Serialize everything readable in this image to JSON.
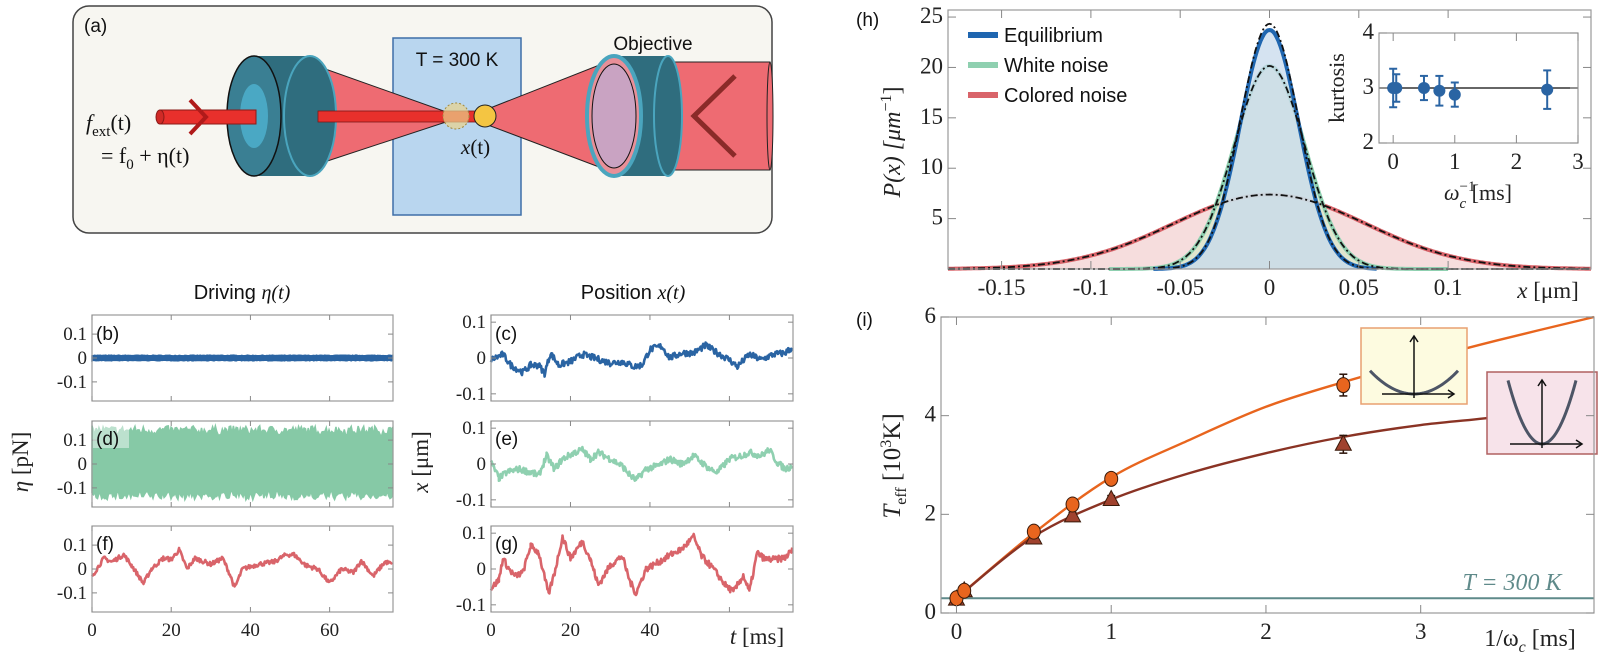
{
  "panel_labels": {
    "a": "(a)",
    "b": "(b)",
    "c": "(c)",
    "d": "(d)",
    "e": "(e)",
    "f": "(f)",
    "g": "(g)",
    "h": "(h)",
    "i": "(i)"
  },
  "schematic": {
    "bath_label": "T = 300 K",
    "objective_label": "Objective",
    "position_label": {
      "var": "x",
      "arg": "(t)"
    },
    "force_label": {
      "f": "f",
      "sub": "ext",
      "arg": "(t)",
      "eq": "= f",
      "zero": "0",
      "rest": " + η(t)"
    },
    "colors": {
      "beam": "#ee6b72",
      "lens": "#2f6d7e",
      "bath": "#b9d6ef",
      "bead": "#f4c542"
    }
  },
  "column_titles": {
    "driving": {
      "text": "Driving ",
      "var": "η(t)"
    },
    "position": {
      "text": "Position ",
      "var": "x(t)"
    }
  },
  "axis_labels": {
    "eta": {
      "var": "η",
      "unit": "  [pN]"
    },
    "x": {
      "var": "x",
      "unit": "  [μm]"
    },
    "t": {
      "var": "t",
      "unit": " [ms]"
    },
    "h_x": {
      "var": "x",
      "unit": " [μm]"
    },
    "h_y": {
      "main": "P(x)  [μm",
      "sup": "−1",
      "end": "]"
    },
    "inset_x": {
      "main": "ω",
      "sub": "c",
      "sup": "−1",
      "end": " [ms]"
    },
    "inset_y": "kurtosis",
    "i_x": {
      "main": "1/ω",
      "sub": "c",
      "end": " [ms]"
    },
    "i_y": {
      "main": "T",
      "sub": "eff",
      "mid": "  [10",
      "sup": "3",
      "end": "K]"
    },
    "i_ref": "T = 300 K"
  },
  "chart_data": [
    {
      "id": "b",
      "type": "line",
      "xlim": [
        0,
        76
      ],
      "ylim": [
        -0.18,
        0.18
      ],
      "xticks": [
        0,
        20,
        40,
        60
      ],
      "yticks": [
        -0.1,
        0,
        0.1
      ],
      "ytick_labels": [
        "-0.1",
        "0",
        "0.1"
      ],
      "xtick_labels": [],
      "color": "#2a64a3",
      "band": {
        "lower": -0.012,
        "upper": 0.012
      }
    },
    {
      "id": "d",
      "type": "line",
      "xlim": [
        0,
        76
      ],
      "ylim": [
        -0.18,
        0.18
      ],
      "xticks": [
        0,
        20,
        40,
        60
      ],
      "yticks": [
        -0.1,
        0,
        0.1
      ],
      "ytick_labels": [
        "-0.1",
        "0",
        "0.1"
      ],
      "xtick_labels": [],
      "color": "#86c9a6",
      "band": {
        "lower": -0.15,
        "upper": 0.16
      }
    },
    {
      "id": "f",
      "type": "line",
      "xlim": [
        0,
        76
      ],
      "ylim": [
        -0.18,
        0.18
      ],
      "xticks": [
        0,
        20,
        40,
        60
      ],
      "yticks": [
        -0.1,
        0,
        0.1
      ],
      "ytick_labels": [
        "-0.1",
        "0",
        "0.1"
      ],
      "xtick_labels": [
        "0",
        "20",
        "40",
        "60"
      ],
      "color": "#d9646a",
      "points": [
        [
          0,
          -0.03
        ],
        [
          3,
          0.045
        ],
        [
          5,
          0.03
        ],
        [
          8,
          0.06
        ],
        [
          10,
          0.015
        ],
        [
          13,
          -0.06
        ],
        [
          15,
          0
        ],
        [
          18,
          0.045
        ],
        [
          20,
          0.04
        ],
        [
          22,
          0.08
        ],
        [
          24,
          0
        ],
        [
          26,
          0.045
        ],
        [
          30,
          0.02
        ],
        [
          33,
          0.045
        ],
        [
          35,
          -0.03
        ],
        [
          36,
          -0.08
        ],
        [
          38,
          0
        ],
        [
          42,
          0.02
        ],
        [
          46,
          0.03
        ],
        [
          49,
          0.06
        ],
        [
          51,
          0.06
        ],
        [
          54,
          0.015
        ],
        [
          57,
          0
        ],
        [
          60,
          -0.06
        ],
        [
          63,
          0
        ],
        [
          66,
          -0.015
        ],
        [
          68,
          0.035
        ],
        [
          71,
          -0.03
        ],
        [
          74,
          0.03
        ],
        [
          76,
          0.02
        ]
      ]
    },
    {
      "id": "c",
      "type": "line",
      "xlim": [
        0,
        76
      ],
      "ylim": [
        -0.12,
        0.12
      ],
      "xticks": [
        0,
        20,
        40,
        60
      ],
      "yticks": [
        -0.1,
        0,
        0.1
      ],
      "ytick_labels": [
        "-0.1",
        "0",
        "0.1"
      ],
      "xtick_labels": [],
      "color": "#2a64a3",
      "points": [
        [
          0,
          -0.005
        ],
        [
          3,
          0.01
        ],
        [
          5,
          -0.02
        ],
        [
          8,
          -0.04
        ],
        [
          10,
          -0.02
        ],
        [
          12,
          -0.02
        ],
        [
          13.5,
          -0.043
        ],
        [
          15,
          0.014
        ],
        [
          17,
          -0.02
        ],
        [
          20,
          -0.01
        ],
        [
          23,
          0.01
        ],
        [
          26,
          0
        ],
        [
          30,
          -0.014
        ],
        [
          33,
          -0.01
        ],
        [
          36,
          -0.024
        ],
        [
          38,
          -0.02
        ],
        [
          40,
          0.024
        ],
        [
          43,
          0.033
        ],
        [
          45,
          0
        ],
        [
          48,
          0.014
        ],
        [
          51,
          0.014
        ],
        [
          54,
          0.035
        ],
        [
          57,
          0.014
        ],
        [
          60,
          -0.005
        ],
        [
          62,
          -0.024
        ],
        [
          65,
          0.01
        ],
        [
          68,
          -0.005
        ],
        [
          71,
          0.01
        ],
        [
          74,
          0.014
        ],
        [
          76,
          0.031
        ]
      ]
    },
    {
      "id": "e",
      "type": "line",
      "xlim": [
        0,
        76
      ],
      "ylim": [
        -0.12,
        0.12
      ],
      "xticks": [
        0,
        20,
        40,
        60
      ],
      "yticks": [
        -0.1,
        0,
        0.1
      ],
      "ytick_labels": [
        "-0.1",
        "0",
        "0.1"
      ],
      "xtick_labels": [],
      "color": "#8fd0b0",
      "points": [
        [
          0,
          0.005
        ],
        [
          2,
          -0.04
        ],
        [
          4,
          -0.023
        ],
        [
          7,
          -0.014
        ],
        [
          10,
          -0.023
        ],
        [
          12,
          -0.032
        ],
        [
          14,
          0.023
        ],
        [
          16,
          -0.014
        ],
        [
          18,
          0.014
        ],
        [
          21,
          0.032
        ],
        [
          23,
          0.04
        ],
        [
          25,
          0.014
        ],
        [
          27,
          0.032
        ],
        [
          30,
          0.014
        ],
        [
          33,
          -0.005
        ],
        [
          35,
          -0.032
        ],
        [
          36.5,
          -0.045
        ],
        [
          39,
          -0.014
        ],
        [
          42,
          -0.005
        ],
        [
          45,
          0.014
        ],
        [
          48,
          0
        ],
        [
          51,
          0.023
        ],
        [
          55,
          -0.014
        ],
        [
          57,
          -0.023
        ],
        [
          60,
          0.014
        ],
        [
          63,
          0.023
        ],
        [
          65,
          0.032
        ],
        [
          68,
          0.023
        ],
        [
          70,
          0.04
        ],
        [
          72,
          0.005
        ],
        [
          74,
          -0.014
        ],
        [
          76,
          -0.005
        ]
      ]
    },
    {
      "id": "g",
      "type": "line",
      "xlim": [
        0,
        76
      ],
      "ylim": [
        -0.12,
        0.12
      ],
      "xticks": [
        0,
        20,
        40,
        60
      ],
      "yticks": [
        -0.1,
        0,
        0.1
      ],
      "ytick_labels": [
        "-0.1",
        "0",
        "0.1"
      ],
      "xtick_labels": [
        "0",
        "20",
        "40"
      ],
      "color": "#d9646a",
      "points": [
        [
          0,
          -0.055
        ],
        [
          2,
          -0.03
        ],
        [
          3,
          0.03
        ],
        [
          4.5,
          0
        ],
        [
          6,
          -0.02
        ],
        [
          8,
          -0.01
        ],
        [
          10,
          0.065
        ],
        [
          12,
          0.045
        ],
        [
          14.5,
          -0.07
        ],
        [
          16,
          -0.01
        ],
        [
          18,
          0.09
        ],
        [
          20,
          0.03
        ],
        [
          23,
          0.077
        ],
        [
          25,
          0.027
        ],
        [
          27,
          -0.045
        ],
        [
          30,
          0.01
        ],
        [
          33,
          0.036
        ],
        [
          35,
          -0.036
        ],
        [
          36.5,
          -0.068
        ],
        [
          39,
          0
        ],
        [
          42,
          0.018
        ],
        [
          46,
          0.045
        ],
        [
          48,
          0.055
        ],
        [
          51,
          0.09
        ],
        [
          53,
          0.036
        ],
        [
          56,
          0
        ],
        [
          59,
          -0.045
        ],
        [
          61,
          -0.064
        ],
        [
          63.5,
          -0.018
        ],
        [
          65,
          -0.064
        ],
        [
          67,
          0.045
        ],
        [
          69,
          0.027
        ],
        [
          72,
          0.027
        ],
        [
          74,
          0.032
        ],
        [
          76,
          0.055
        ]
      ]
    },
    {
      "id": "h",
      "type": "area",
      "xlim": [
        -0.18,
        0.18
      ],
      "ylim": [
        0,
        25.7
      ],
      "xticks": [
        -0.15,
        -0.1,
        -0.05,
        0,
        0.05,
        0.1
      ],
      "xtick_labels": [
        "-0.15",
        "-0.1",
        "-0.05",
        "0",
        "0.05",
        "0.1"
      ],
      "yticks": [
        5,
        10,
        15,
        20,
        25
      ],
      "ytick_labels": [
        "5",
        "10",
        "15",
        "20",
        "25"
      ],
      "legend_position": "top-left",
      "series": [
        {
          "name": "Colored noise",
          "color": "#d9646a",
          "fill": "#f3d2d2",
          "mean": 0,
          "std": 0.054,
          "extent": [
            -0.18,
            0.18
          ]
        },
        {
          "name": "White noise",
          "color": "#8fd0b0",
          "fill": "#d8e8c8",
          "mean": 0,
          "std": 0.0198,
          "extent": [
            -0.09,
            0.1
          ]
        },
        {
          "name": "Equilibrium",
          "color": "#1f66b0",
          "fill": "#c7d9ec",
          "mean": 0,
          "std": 0.0164,
          "extent": [
            -0.065,
            0.06
          ]
        }
      ],
      "fit": "gaussian (dashed black)"
    },
    {
      "id": "h_inset",
      "type": "scatter",
      "xlim": [
        -0.23,
        3
      ],
      "ylim": [
        2,
        4
      ],
      "xticks": [
        0,
        1,
        2,
        3
      ],
      "xtick_labels": [
        "0",
        "1",
        "2",
        "3"
      ],
      "yticks": [
        2,
        3,
        4
      ],
      "ytick_labels": [
        "2",
        "3",
        "4"
      ],
      "reference_line": 3,
      "color": "#2a64a3",
      "points": [
        {
          "x": 0,
          "y": 3.0,
          "err": 0.35
        },
        {
          "x": 0.05,
          "y": 3.0,
          "err": 0.25
        },
        {
          "x": 0.5,
          "y": 3.0,
          "err": 0.22
        },
        {
          "x": 0.75,
          "y": 2.95,
          "err": 0.27
        },
        {
          "x": 1,
          "y": 2.88,
          "err": 0.22
        },
        {
          "x": 2.5,
          "y": 2.97,
          "err": 0.35
        }
      ]
    },
    {
      "id": "i",
      "type": "scatter",
      "xlim": [
        -0.1,
        4.12
      ],
      "ylim": [
        0,
        6
      ],
      "xticks": [
        0,
        1,
        2,
        3
      ],
      "xtick_labels": [
        "0",
        "1",
        "2",
        "3"
      ],
      "yticks": [
        0,
        2,
        4,
        6
      ],
      "ytick_labels": [
        "0",
        "2",
        "4",
        "6"
      ],
      "reference_line": 0.3,
      "reference_color": "#5f8a8a",
      "series": [
        {
          "marker": "circle",
          "color": "#e8651e",
          "points": [
            {
              "x": 0,
              "y": 0.3,
              "err": 0.05
            },
            {
              "x": 0.05,
              "y": 0.45,
              "err": 0.05
            },
            {
              "x": 0.5,
              "y": 1.65,
              "err": 0.06
            },
            {
              "x": 0.75,
              "y": 2.2,
              "err": 0.07
            },
            {
              "x": 1,
              "y": 2.72,
              "err": 0.1
            },
            {
              "x": 2.5,
              "y": 4.62,
              "err": 0.22
            }
          ],
          "curve": [
            [
              0,
              0.3
            ],
            [
              0.5,
              1.62
            ],
            [
              1,
              2.75
            ],
            [
              1.5,
              3.5
            ],
            [
              2,
              4.18
            ],
            [
              2.5,
              4.68
            ],
            [
              3,
              5.12
            ],
            [
              3.5,
              5.53
            ],
            [
              4.12,
              6.0
            ]
          ]
        },
        {
          "marker": "triangle",
          "color": "#a0422e",
          "line_color": "#8a3324",
          "points": [
            {
              "x": 0,
              "y": 0.28,
              "err": 0.05
            },
            {
              "x": 0.05,
              "y": 0.45,
              "err": 0.05
            },
            {
              "x": 0.5,
              "y": 1.52,
              "err": 0.05
            },
            {
              "x": 0.75,
              "y": 1.97,
              "err": 0.07
            },
            {
              "x": 1,
              "y": 2.3,
              "err": 0.08
            },
            {
              "x": 2.5,
              "y": 3.42,
              "err": 0.18
            }
          ],
          "curve": [
            [
              0,
              0.3
            ],
            [
              0.5,
              1.55
            ],
            [
              1,
              2.3
            ],
            [
              1.5,
              2.83
            ],
            [
              2,
              3.24
            ],
            [
              2.5,
              3.57
            ],
            [
              3,
              3.81
            ],
            [
              3.5,
              3.98
            ],
            [
              4.12,
              4.28
            ]
          ]
        }
      ]
    }
  ]
}
